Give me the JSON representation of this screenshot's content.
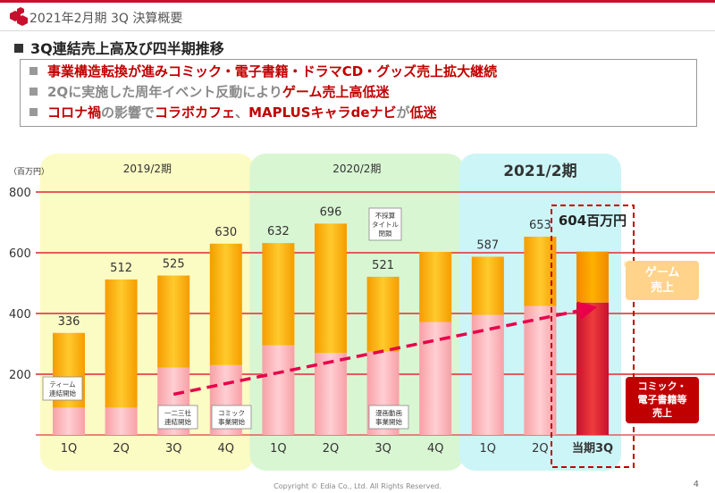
{
  "header": {
    "title": "2021年2月期 3Q 決算概要"
  },
  "heading": "3Q連結売上高及び四半期推移",
  "points": [
    [
      {
        "t": "事業構造転換が進みコミック・電子書籍・ドラマCD・グッズ売上拡大継続",
        "c": "red"
      }
    ],
    [
      {
        "t": "2Qに実施した周年イベント反動により",
        "c": "gry"
      },
      {
        "t": "ゲーム売上高低迷",
        "c": "red"
      }
    ],
    [
      {
        "t": "コロナ禍",
        "c": "red"
      },
      {
        "t": "の影響で",
        "c": "gry"
      },
      {
        "t": "コラボカフェ",
        "c": "red"
      },
      {
        "t": "、",
        "c": "gry"
      },
      {
        "t": "MAPLUSキャラdeナビ",
        "c": "red"
      },
      {
        "t": "が",
        "c": "gry"
      },
      {
        "t": "低迷",
        "c": "red"
      }
    ]
  ],
  "chart_data": {
    "type": "bar",
    "ylabel": "（百万円）",
    "ylim": [
      0,
      800
    ],
    "yticks": [
      200,
      400,
      600,
      800
    ],
    "grid": true,
    "categories": [
      "1Q",
      "2Q",
      "3Q",
      "4Q",
      "1Q",
      "2Q",
      "3Q",
      "4Q",
      "1Q",
      "2Q",
      "当期3Q"
    ],
    "fiscal_groups": [
      {
        "label": "2019/2期",
        "from": 0,
        "to": 3,
        "color": "#fbfbc4"
      },
      {
        "label": "2020/2期",
        "from": 4,
        "to": 7,
        "color": "#d9f6d3"
      },
      {
        "label": "2021/2期",
        "from": 8,
        "to": 10,
        "color": "#ccf5f7"
      }
    ],
    "totals": [
      336,
      512,
      525,
      630,
      632,
      696,
      521,
      603,
      587,
      653,
      604
    ],
    "total_labels": [
      "336",
      "512",
      "525",
      "630",
      "632",
      "696",
      "521",
      "",
      "587",
      "653",
      ""
    ],
    "series": [
      {
        "name": "コミック・電子書籍等売上",
        "values": [
          90,
          90,
          222,
          230,
          295,
          270,
          275,
          372,
          395,
          425,
          436
        ]
      },
      {
        "name": "ゲーム売上",
        "values": [
          246,
          422,
          303,
          400,
          337,
          426,
          246,
          231,
          192,
          228,
          168
        ]
      }
    ],
    "highlight": {
      "label": "604百万円",
      "index": 10
    },
    "callouts": [
      {
        "index": 0,
        "lines": [
          "ティーム",
          "連結開始"
        ]
      },
      {
        "index": 2,
        "lines": [
          "一二三社",
          "連結開始"
        ]
      },
      {
        "index": 3,
        "lines": [
          "コミック",
          "事業開始"
        ]
      },
      {
        "index": 6,
        "lines": [
          "漫画動画",
          "事業開始"
        ]
      },
      {
        "index": 6,
        "lines": [
          "不採算",
          "タイトル",
          "閉鎖"
        ]
      }
    ],
    "legend_game": [
      "ゲーム",
      "売上"
    ],
    "legend_comic": [
      "コミック・",
      "電子書籍等",
      "売上"
    ],
    "trend_arrow": {
      "from": 2,
      "to": 10
    }
  },
  "footer": "Copyright © Edia Co., Ltd. All Rights Reserved.",
  "page": "4"
}
